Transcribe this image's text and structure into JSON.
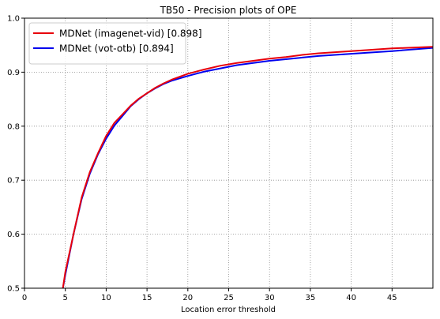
{
  "chart_data": {
    "type": "line",
    "title": "TB50 - Precision plots of OPE",
    "xlabel": "Location error threshold",
    "ylabel": "",
    "xlim": [
      0,
      50
    ],
    "ylim": [
      0.5,
      1.0
    ],
    "grid": true,
    "legend_position": "top-left",
    "x_ticks": [
      0,
      5,
      10,
      15,
      20,
      25,
      30,
      35,
      40,
      45
    ],
    "x_tick_labels": [
      "0",
      "5",
      "10",
      "15",
      "20",
      "25",
      "30",
      "35",
      "40",
      "45"
    ],
    "y_ticks": [
      0.5,
      0.6,
      0.7,
      0.8,
      0.9,
      1.0
    ],
    "y_tick_labels": [
      "0.5",
      "0.6",
      "0.7",
      "0.8",
      "0.9",
      "1.0"
    ],
    "series": [
      {
        "name": "MDNet (imagenet-vid) [0.898]",
        "color": "#e8000b",
        "x": [
          4.7,
          5,
          6,
          7,
          8,
          9,
          10,
          11,
          12,
          13,
          14,
          15,
          16,
          17,
          18,
          20,
          22,
          24,
          26,
          28,
          30,
          32,
          34,
          36,
          38,
          40,
          42,
          45,
          50
        ],
        "y": [
          0.5,
          0.53,
          0.6,
          0.668,
          0.715,
          0.75,
          0.782,
          0.806,
          0.822,
          0.838,
          0.851,
          0.861,
          0.871,
          0.879,
          0.886,
          0.897,
          0.905,
          0.912,
          0.917,
          0.921,
          0.925,
          0.928,
          0.932,
          0.935,
          0.937,
          0.939,
          0.941,
          0.944,
          0.947
        ]
      },
      {
        "name": "MDNet (vot-otb) [0.894]",
        "color": "#0000ee",
        "x": [
          4.7,
          5,
          6,
          7,
          8,
          9,
          10,
          11,
          12,
          13,
          14,
          15,
          16,
          17,
          18,
          20,
          22,
          24,
          26,
          28,
          30,
          32,
          34,
          36,
          38,
          40,
          42,
          45,
          50
        ],
        "y": [
          0.5,
          0.525,
          0.6,
          0.665,
          0.712,
          0.748,
          0.777,
          0.801,
          0.819,
          0.837,
          0.85,
          0.861,
          0.87,
          0.878,
          0.884,
          0.893,
          0.901,
          0.907,
          0.913,
          0.917,
          0.921,
          0.924,
          0.927,
          0.93,
          0.932,
          0.934,
          0.936,
          0.939,
          0.945
        ]
      }
    ]
  }
}
